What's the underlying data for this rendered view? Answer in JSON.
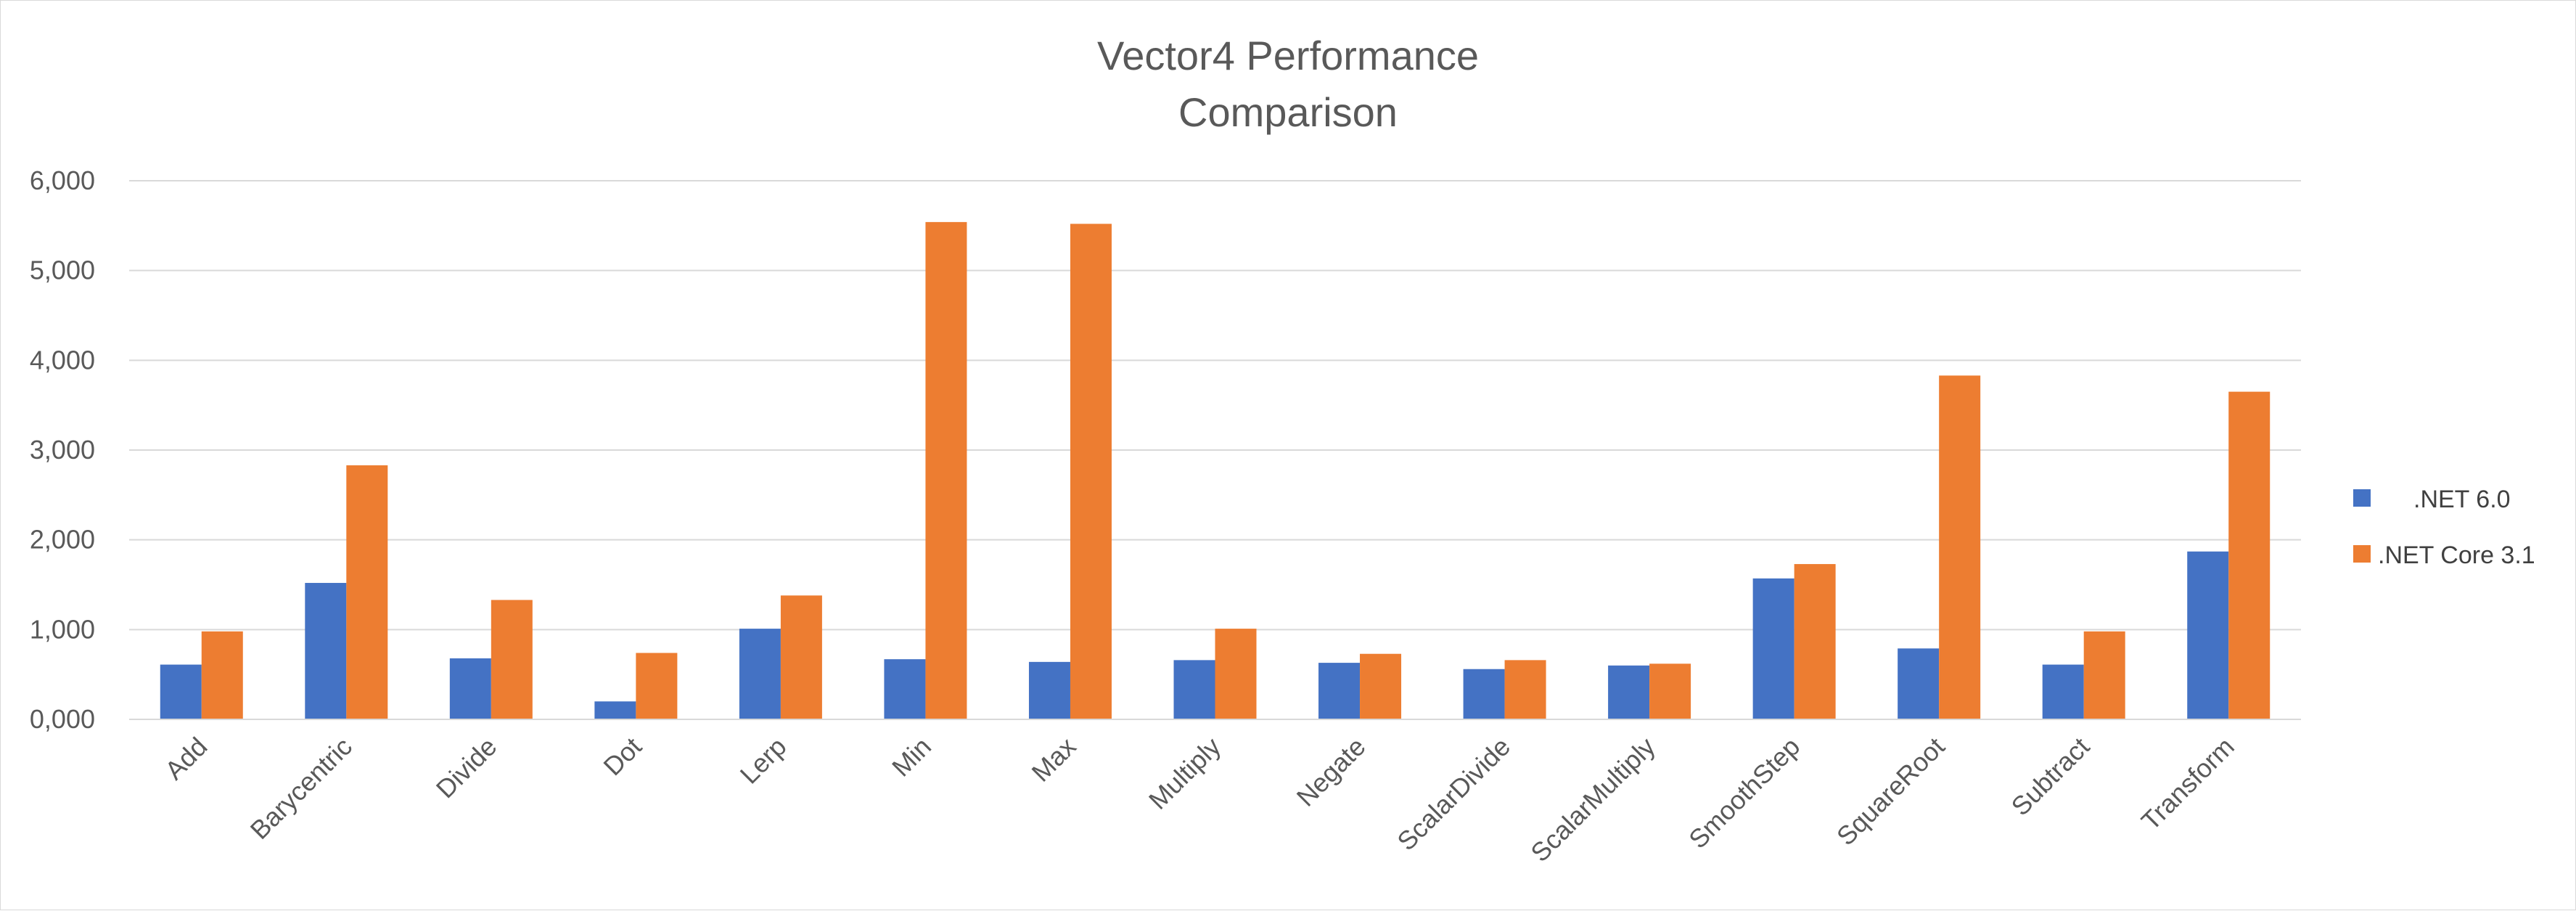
{
  "chart_data": {
    "type": "bar",
    "title_lines": [
      "Vector4 Performance",
      "Comparison"
    ],
    "xlabel": "",
    "ylabel": "",
    "ylim": [
      0,
      6000
    ],
    "yticks": [
      0,
      1000,
      2000,
      3000,
      4000,
      5000,
      6000
    ],
    "ytick_labels": [
      "0,000",
      "1,000",
      "2,000",
      "3,000",
      "4,000",
      "5,000",
      "6,000"
    ],
    "grid": true,
    "legend_position": "right",
    "categories": [
      "Add",
      "Barycentric",
      "Divide",
      "Dot",
      "Lerp",
      "Min",
      "Max",
      "Multiply",
      "Negate",
      "ScalarDivide",
      "ScalarMultiply",
      "SmoothStep",
      "SquareRoot",
      "Subtract",
      "Transform"
    ],
    "series": [
      {
        "name": ".NET 6.0",
        "color": "#4472C4",
        "values": [
          610,
          1520,
          680,
          200,
          1010,
          670,
          640,
          660,
          630,
          560,
          600,
          1570,
          790,
          610,
          1870
        ]
      },
      {
        "name": ".NET Core 3.1",
        "color": "#ED7D31",
        "values": [
          980,
          2830,
          1330,
          740,
          1380,
          5540,
          5520,
          1010,
          730,
          660,
          620,
          1730,
          3830,
          980,
          3650
        ]
      }
    ]
  }
}
